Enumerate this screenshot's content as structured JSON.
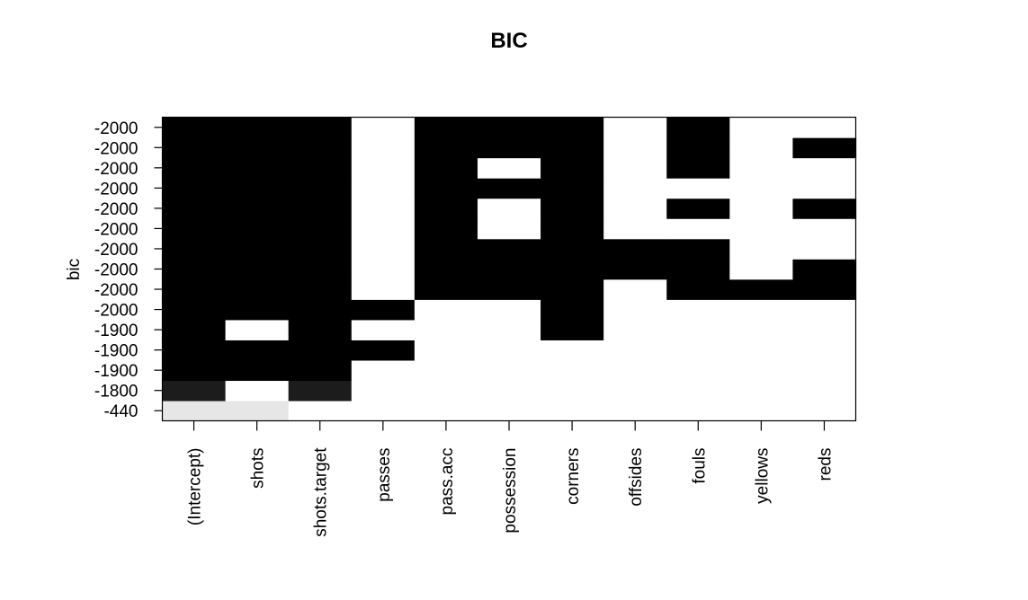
{
  "chart_data": {
    "type": "heatmap",
    "title": "BIC",
    "xlabel": "",
    "ylabel": "bic",
    "columns": [
      "(Intercept)",
      "shots",
      "shots.target",
      "passes",
      "pass.acc",
      "possession",
      "corners",
      "offsides",
      "fouls",
      "yellows",
      "reds"
    ],
    "rows": [
      "-440",
      "-1800",
      "-1900",
      "-1900",
      "-1900",
      "-2000",
      "-2000",
      "-2000",
      "-2000",
      "-2000",
      "-2000",
      "-2000",
      "-2000",
      "-2000",
      "-2000"
    ],
    "cell_colors": {
      "black": "#000000",
      "dark": "#1c1c1c",
      "light": "#e6e6e6",
      "white": "#ffffff"
    },
    "values": [
      [
        0.1,
        0.1,
        0,
        0,
        0,
        0,
        0,
        0,
        0,
        0,
        0
      ],
      [
        0.89,
        0,
        0.89,
        0,
        0,
        0,
        0,
        0,
        0,
        0,
        0
      ],
      [
        1,
        1,
        1,
        0,
        0,
        0,
        0,
        0,
        0,
        0,
        0
      ],
      [
        1,
        1,
        1,
        1,
        0,
        0,
        0,
        0,
        0,
        0,
        0
      ],
      [
        1,
        0,
        1,
        0,
        0,
        0,
        1,
        0,
        0,
        0,
        0
      ],
      [
        1,
        1,
        1,
        1,
        0,
        0,
        1,
        0,
        0,
        0,
        0
      ],
      [
        1,
        1,
        1,
        0,
        1,
        1,
        1,
        0,
        1,
        1,
        1
      ],
      [
        1,
        1,
        1,
        0,
        1,
        1,
        1,
        1,
        1,
        0,
        1
      ],
      [
        1,
        1,
        1,
        0,
        1,
        1,
        1,
        1,
        1,
        0,
        0
      ],
      [
        1,
        1,
        1,
        0,
        1,
        0,
        1,
        0,
        0,
        0,
        0
      ],
      [
        1,
        1,
        1,
        0,
        1,
        0,
        1,
        0,
        1,
        0,
        1
      ],
      [
        1,
        1,
        1,
        0,
        1,
        1,
        1,
        0,
        0,
        0,
        0
      ],
      [
        1,
        1,
        1,
        0,
        1,
        0,
        1,
        0,
        1,
        0,
        0
      ],
      [
        1,
        1,
        1,
        0,
        1,
        1,
        1,
        0,
        1,
        0,
        1
      ],
      [
        1,
        1,
        1,
        0,
        1,
        1,
        1,
        0,
        1,
        0,
        0
      ]
    ],
    "legend": "none",
    "grid": false
  }
}
